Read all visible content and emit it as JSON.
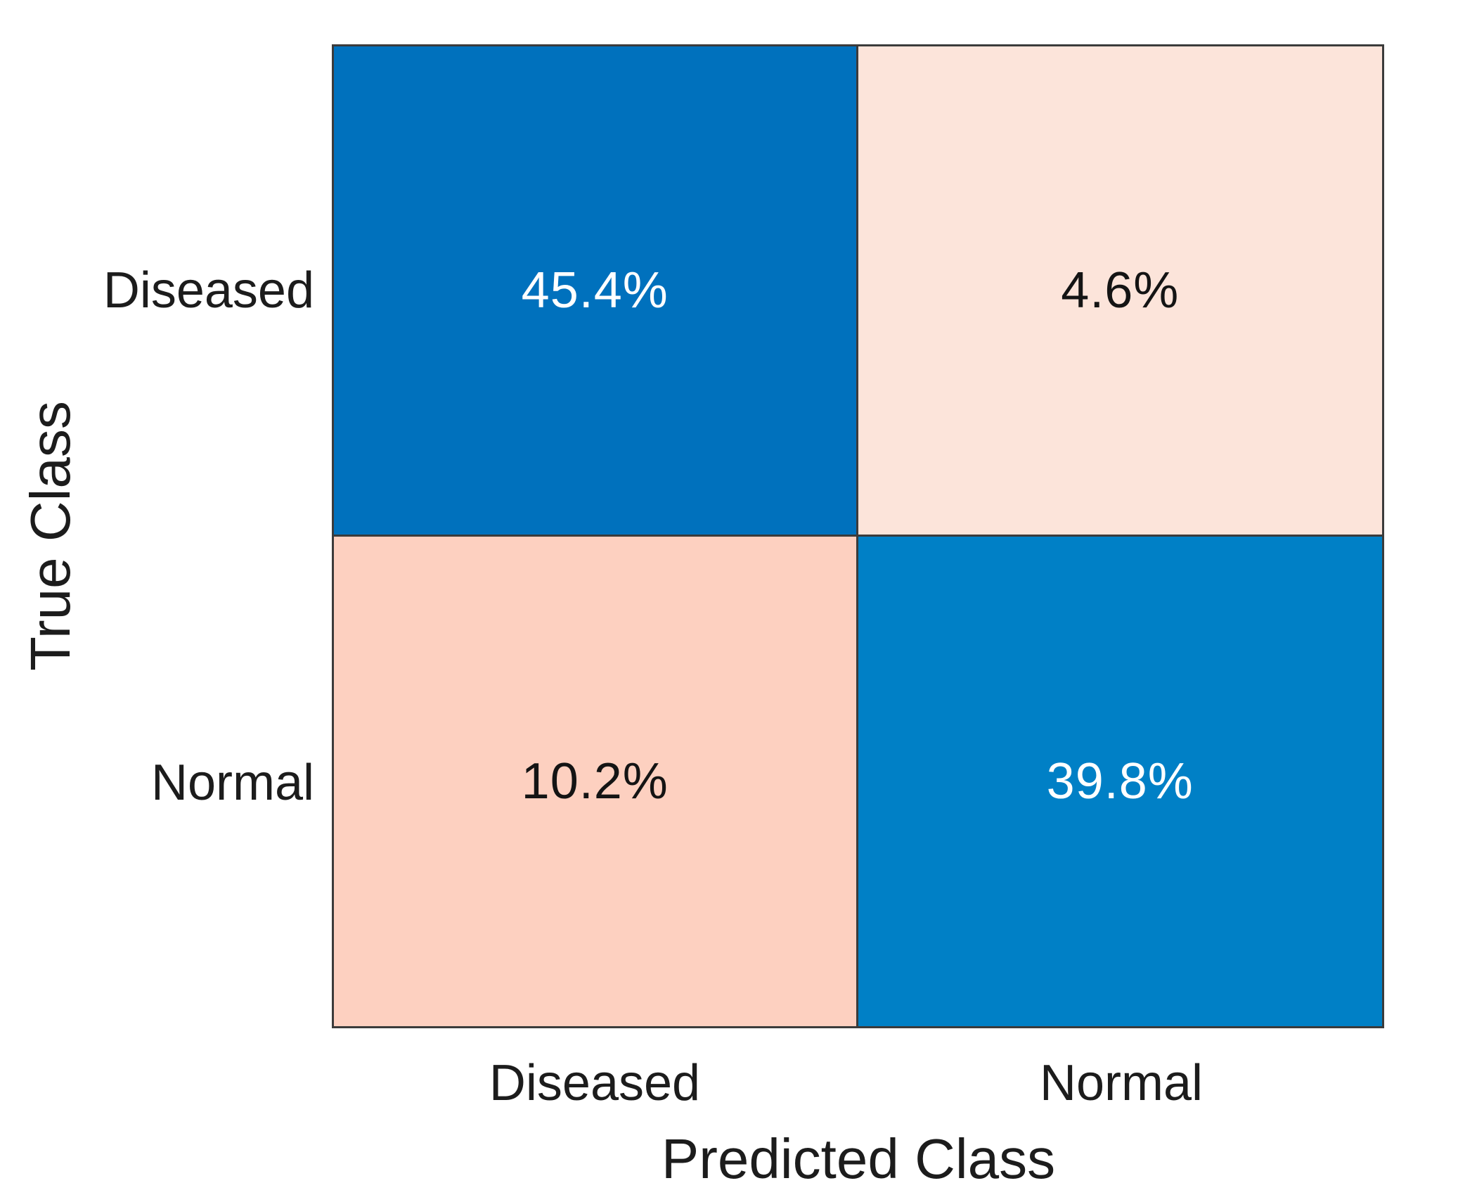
{
  "chart_data": {
    "type": "heatmap",
    "subtype": "confusion-matrix",
    "title": "",
    "xlabel": "Predicted Class",
    "ylabel": "True Class",
    "x_categories": [
      "Diseased",
      "Normal"
    ],
    "y_categories": [
      "Diseased",
      "Normal"
    ],
    "values_percent": [
      [
        45.4,
        4.6
      ],
      [
        10.2,
        39.8
      ]
    ],
    "grid": "on",
    "legend": "none",
    "cells": [
      {
        "true_class": "Diseased",
        "predicted_class": "Diseased",
        "label": "45.4%",
        "value": 45.4,
        "bg": "#0071BD",
        "fg": "#ffffff"
      },
      {
        "true_class": "Diseased",
        "predicted_class": "Normal",
        "label": "4.6%",
        "value": 4.6,
        "bg": "#FCE4DA",
        "fg": "#141414"
      },
      {
        "true_class": "Normal",
        "predicted_class": "Diseased",
        "label": "10.2%",
        "value": 10.2,
        "bg": "#FDD0C0",
        "fg": "#141414"
      },
      {
        "true_class": "Normal",
        "predicted_class": "Normal",
        "label": "39.8%",
        "value": 39.8,
        "bg": "#0080C6",
        "fg": "#ffffff"
      }
    ],
    "colors": {
      "diagonal_blue_dark": "#0071BD",
      "diagonal_blue_light": "#0080C6",
      "offdiagonal_pink_light": "#FCE4DA",
      "offdiagonal_pink_dark": "#FDD0C0",
      "grid_line": "#3b3b3b",
      "axis_text": "#1c1c1c",
      "background": "#ffffff"
    }
  }
}
